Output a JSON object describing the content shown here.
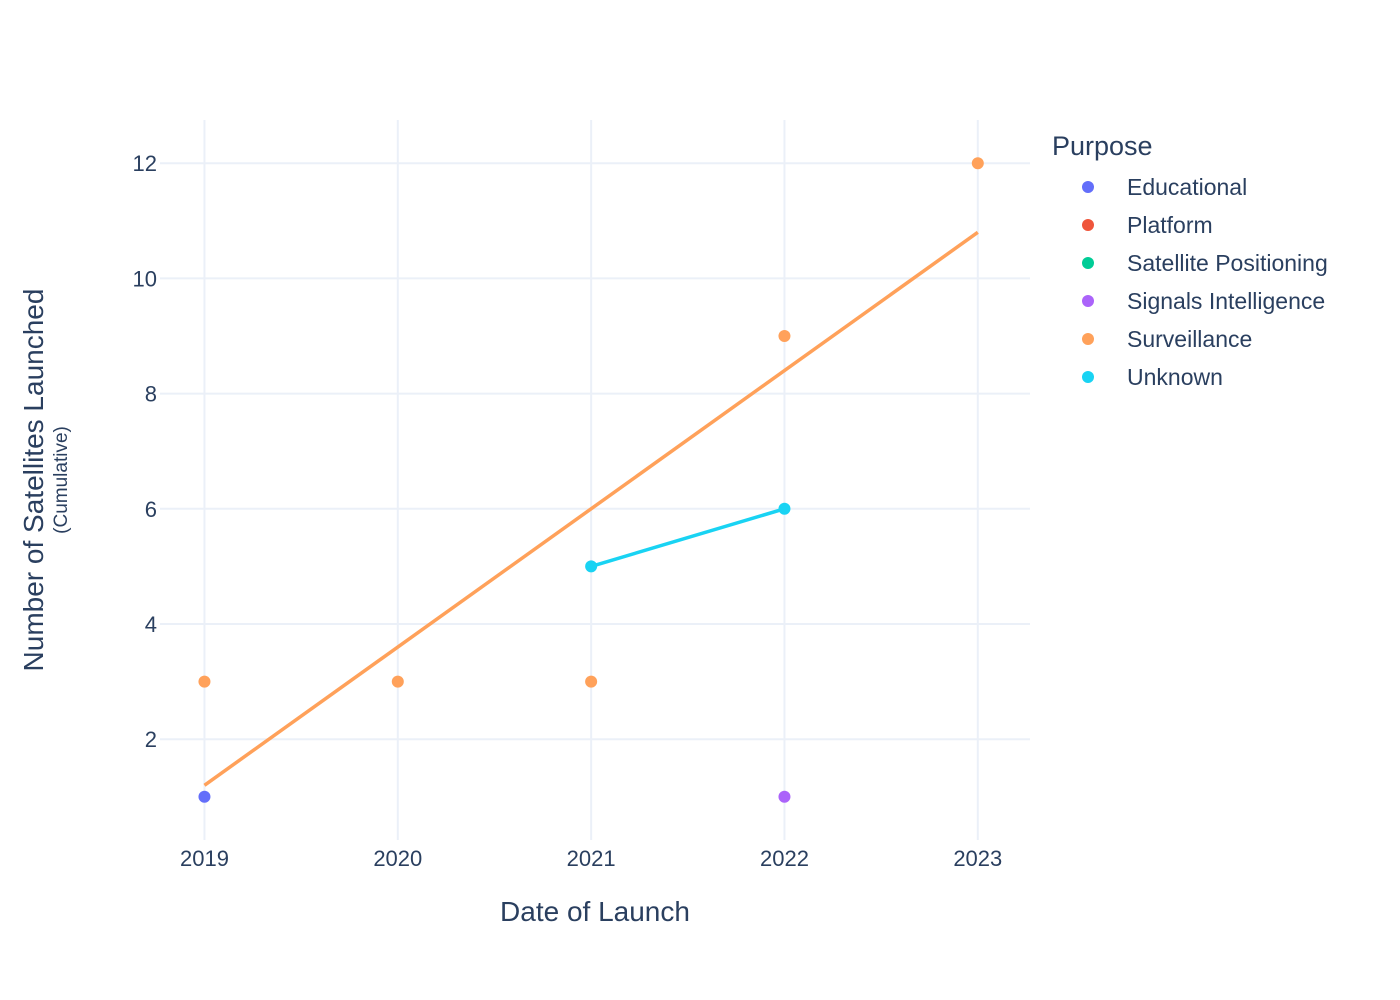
{
  "chart_data": {
    "type": "scatter",
    "title": "",
    "xlabel": "Date of Launch",
    "ylabel": "Number of Satellites Launched",
    "ylabel_sub": "(Cumulative)",
    "x_ticks": [
      "2019",
      "2020",
      "2021",
      "2022",
      "2023"
    ],
    "y_ticks": [
      "2",
      "4",
      "6",
      "8",
      "10",
      "12"
    ],
    "xlim": [
      2018.77,
      2023.27
    ],
    "ylim": [
      0.25,
      12.75
    ],
    "grid": true,
    "legend": {
      "title": "Purpose",
      "position": "right"
    },
    "series": [
      {
        "name": "Educational",
        "color": "#636efa",
        "mode": "markers",
        "x": [
          2019
        ],
        "y": [
          1
        ]
      },
      {
        "name": "Platform",
        "color": "#ef553b",
        "mode": "markers",
        "x": [],
        "y": []
      },
      {
        "name": "Satellite Positioning",
        "color": "#00cc96",
        "mode": "markers",
        "x": [],
        "y": []
      },
      {
        "name": "Signals Intelligence",
        "color": "#ab63fa",
        "mode": "markers",
        "x": [
          2022
        ],
        "y": [
          1
        ]
      },
      {
        "name": "Surveillance",
        "color": "#ffa15a",
        "mode": "markers",
        "x": [
          2019,
          2020,
          2021,
          2022,
          2023
        ],
        "y": [
          3,
          3,
          3,
          9,
          12
        ]
      },
      {
        "name": "Unknown",
        "color": "#19d3f3",
        "mode": "lines+markers",
        "x": [
          2021,
          2022
        ],
        "y": [
          5,
          6
        ]
      }
    ],
    "trendlines": [
      {
        "series": "Surveillance",
        "color": "#ffa15a",
        "x": [
          2019,
          2023
        ],
        "y": [
          1.2,
          10.8
        ]
      }
    ]
  }
}
